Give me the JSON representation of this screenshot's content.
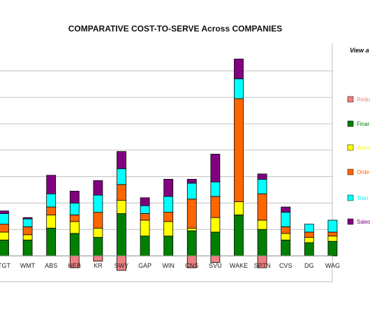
{
  "chart_data": {
    "type": "bar",
    "stacked": true,
    "title": "COMPARATIVE COST-TO-SERVE Across COMPANIES",
    "xlabel": "",
    "ylabel": "",
    "ylim": [
      -1,
      8
    ],
    "grid": true,
    "legend_position": "right",
    "legend_title": "View a",
    "categories": [
      "TGT",
      "WMT",
      "ABS",
      "HEB",
      "KR",
      "SWY",
      "GAP",
      "WIN",
      "CNS",
      "SVU",
      "WAKE",
      "SPTN",
      "CVS",
      "DG",
      "WAG"
    ],
    "series": [
      {
        "name": "Redu",
        "color": "#f08080",
        "values": [
          0,
          0,
          0,
          -0.45,
          -0.2,
          -0.55,
          0,
          0,
          -0.45,
          -0.25,
          0,
          -0.45,
          0,
          0,
          0
        ]
      },
      {
        "name": "Finar",
        "color": "#008000",
        "values": [
          0.6,
          0.6,
          1.05,
          0.85,
          0.7,
          1.6,
          0.75,
          0.75,
          0.95,
          0.9,
          1.55,
          1.0,
          0.6,
          0.5,
          0.55
        ]
      },
      {
        "name": "Ware",
        "color": "#ffff00",
        "values": [
          0.3,
          0.2,
          0.5,
          0.45,
          0.35,
          0.5,
          0.6,
          0.55,
          0.1,
          0.55,
          0.5,
          0.35,
          0.25,
          0.2,
          0.2
        ]
      },
      {
        "name": "Orde",
        "color": "#ff6600",
        "values": [
          0.3,
          0.3,
          0.3,
          0.25,
          0.6,
          0.6,
          0.25,
          0.35,
          1.1,
          0.8,
          3.9,
          1.0,
          0.25,
          0.2,
          0.15
        ]
      },
      {
        "name": "Tran",
        "color": "#00ffff",
        "values": [
          0.4,
          0.3,
          0.5,
          0.45,
          0.65,
          0.6,
          0.3,
          0.6,
          0.6,
          0.55,
          0.75,
          0.55,
          0.55,
          0.3,
          0.45
        ]
      },
      {
        "name": "Sales",
        "color": "#800080",
        "values": [
          0.1,
          0.05,
          0.7,
          0.45,
          0.55,
          0.65,
          0.3,
          0.65,
          0.15,
          1.05,
          0.75,
          0.2,
          0.2,
          0,
          0
        ]
      }
    ]
  }
}
